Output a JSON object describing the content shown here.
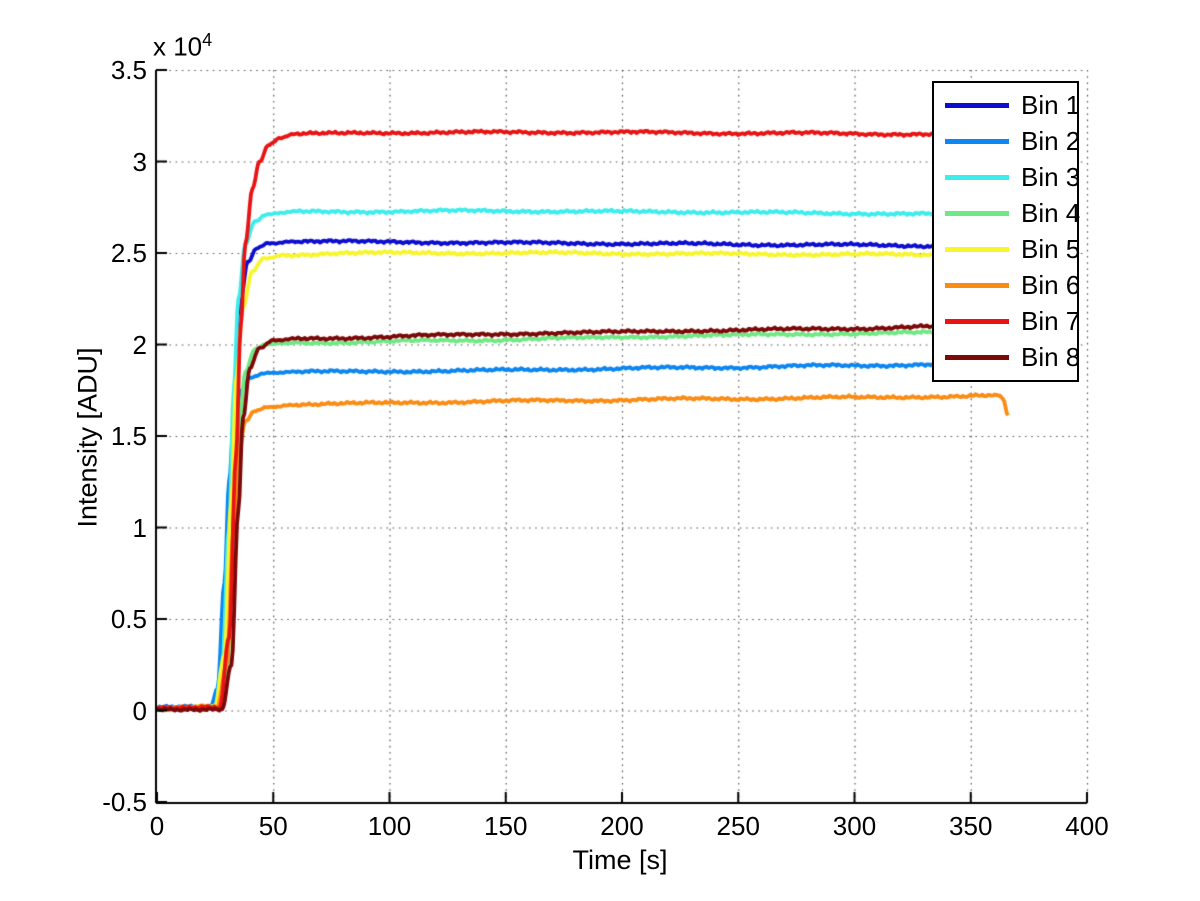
{
  "axes": {
    "xlabel": "Time [s]",
    "ylabel": "Intensity [ADU]",
    "exp_label_base": "x 10",
    "exp_label_exp": "4",
    "x_ticks": [
      0,
      50,
      100,
      150,
      200,
      250,
      300,
      350,
      400
    ],
    "y_ticks": [
      -0.5,
      0,
      0.5,
      1,
      1.5,
      2,
      2.5,
      3,
      3.5
    ]
  },
  "legend": {
    "items": [
      {
        "label": "Bin 1",
        "color": "#0D0DD0"
      },
      {
        "label": "Bin 2",
        "color": "#0C86F0"
      },
      {
        "label": "Bin 3",
        "color": "#3DEDED"
      },
      {
        "label": "Bin 4",
        "color": "#70E884"
      },
      {
        "label": "Bin 5",
        "color": "#F7F52E"
      },
      {
        "label": "Bin 6",
        "color": "#FA8C14"
      },
      {
        "label": "Bin 7",
        "color": "#E81414"
      },
      {
        "label": "Bin 8",
        "color": "#7C0808"
      }
    ]
  },
  "chart_data": {
    "type": "line",
    "title": "",
    "xlabel": "Time [s]",
    "ylabel": "Intensity [ADU]",
    "xlim": [
      0,
      400
    ],
    "ylim": [
      -5000,
      35000
    ],
    "y_units_note": "values below are in units of 1e4 ADU",
    "grid": true,
    "legend_position": "northeast",
    "series": [
      {
        "name": "Bin 1",
        "color": "#0D0DD0",
        "points": [
          [
            0,
            0.01
          ],
          [
            24,
            0.01
          ],
          [
            28,
            0.06
          ],
          [
            30,
            0.35
          ],
          [
            32,
            1.1
          ],
          [
            34,
            1.85
          ],
          [
            36,
            2.25
          ],
          [
            39,
            2.45
          ],
          [
            43,
            2.53
          ],
          [
            48,
            2.555
          ],
          [
            60,
            2.565
          ],
          [
            100,
            2.56
          ],
          [
            160,
            2.555
          ],
          [
            220,
            2.55
          ],
          [
            280,
            2.545
          ],
          [
            335,
            2.54
          ],
          [
            365,
            2.535
          ]
        ]
      },
      {
        "name": "Bin 2",
        "color": "#0C86F0",
        "points": [
          [
            0,
            0.015
          ],
          [
            23,
            0.02
          ],
          [
            26,
            0.12
          ],
          [
            29,
            0.7
          ],
          [
            31,
            1.25
          ],
          [
            33,
            1.58
          ],
          [
            36,
            1.75
          ],
          [
            40,
            1.82
          ],
          [
            46,
            1.845
          ],
          [
            60,
            1.85
          ],
          [
            120,
            1.855
          ],
          [
            180,
            1.865
          ],
          [
            240,
            1.875
          ],
          [
            300,
            1.885
          ],
          [
            340,
            1.893
          ],
          [
            361,
            1.9
          ],
          [
            364,
            1.895
          ],
          [
            366,
            1.82
          ]
        ]
      },
      {
        "name": "Bin 3",
        "color": "#3DEDED",
        "points": [
          [
            0,
            0.01
          ],
          [
            25,
            0.02
          ],
          [
            28,
            0.25
          ],
          [
            31,
            1.0
          ],
          [
            33,
            1.75
          ],
          [
            35,
            2.25
          ],
          [
            38,
            2.55
          ],
          [
            42,
            2.67
          ],
          [
            47,
            2.71
          ],
          [
            60,
            2.725
          ],
          [
            140,
            2.73
          ],
          [
            220,
            2.725
          ],
          [
            300,
            2.717
          ],
          [
            340,
            2.712
          ],
          [
            365,
            2.71
          ]
        ]
      },
      {
        "name": "Bin 4",
        "color": "#70E884",
        "points": [
          [
            0,
            0.01
          ],
          [
            27,
            0.02
          ],
          [
            30,
            0.2
          ],
          [
            33,
            0.95
          ],
          [
            35,
            1.5
          ],
          [
            38,
            1.85
          ],
          [
            42,
            1.97
          ],
          [
            47,
            2.0
          ],
          [
            60,
            2.01
          ],
          [
            120,
            2.02
          ],
          [
            180,
            2.035
          ],
          [
            240,
            2.05
          ],
          [
            300,
            2.06
          ],
          [
            340,
            2.065
          ],
          [
            365,
            2.07
          ]
        ]
      },
      {
        "name": "Bin 5",
        "color": "#F7F52E",
        "points": [
          [
            0,
            0.01
          ],
          [
            25,
            0.02
          ],
          [
            29,
            0.3
          ],
          [
            32,
            1.15
          ],
          [
            34,
            1.8
          ],
          [
            37,
            2.2
          ],
          [
            41,
            2.4
          ],
          [
            46,
            2.47
          ],
          [
            55,
            2.49
          ],
          [
            80,
            2.5
          ],
          [
            160,
            2.5
          ],
          [
            240,
            2.495
          ],
          [
            300,
            2.492
          ],
          [
            340,
            2.49
          ],
          [
            365,
            2.49
          ]
        ]
      },
      {
        "name": "Bin 6",
        "color": "#FA8C14",
        "points": [
          [
            0,
            0.01
          ],
          [
            26,
            0.02
          ],
          [
            30,
            0.25
          ],
          [
            33,
            1.0
          ],
          [
            35,
            1.4
          ],
          [
            38,
            1.58
          ],
          [
            42,
            1.64
          ],
          [
            48,
            1.66
          ],
          [
            60,
            1.672
          ],
          [
            120,
            1.685
          ],
          [
            180,
            1.695
          ],
          [
            240,
            1.703
          ],
          [
            300,
            1.71
          ],
          [
            340,
            1.716
          ],
          [
            358,
            1.72
          ],
          [
            362,
            1.72
          ],
          [
            364,
            1.7
          ],
          [
            366,
            1.61
          ]
        ]
      },
      {
        "name": "Bin 7",
        "color": "#E81414",
        "points": [
          [
            0,
            0.01
          ],
          [
            27,
            0.02
          ],
          [
            31,
            0.4
          ],
          [
            34,
            1.4
          ],
          [
            36,
            2.1
          ],
          [
            38,
            2.55
          ],
          [
            41,
            2.85
          ],
          [
            44,
            3.0
          ],
          [
            48,
            3.09
          ],
          [
            53,
            3.13
          ],
          [
            60,
            3.15
          ],
          [
            100,
            3.158
          ],
          [
            180,
            3.16
          ],
          [
            260,
            3.155
          ],
          [
            335,
            3.15
          ],
          [
            365,
            3.148
          ]
        ]
      },
      {
        "name": "Bin 8",
        "color": "#7C0808",
        "points": [
          [
            0,
            0.005
          ],
          [
            28,
            0.01
          ],
          [
            32,
            0.25
          ],
          [
            35,
            1.1
          ],
          [
            37,
            1.6
          ],
          [
            40,
            1.87
          ],
          [
            44,
            1.98
          ],
          [
            50,
            2.02
          ],
          [
            60,
            2.03
          ],
          [
            120,
            2.05
          ],
          [
            180,
            2.065
          ],
          [
            240,
            2.077
          ],
          [
            300,
            2.088
          ],
          [
            340,
            2.098
          ],
          [
            365,
            2.105
          ]
        ]
      }
    ]
  }
}
